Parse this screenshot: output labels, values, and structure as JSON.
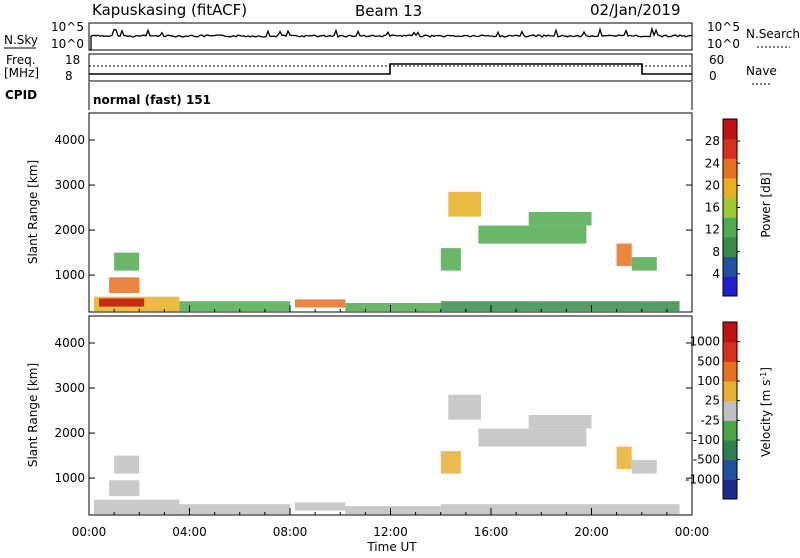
{
  "header": {
    "radar": "Kapuskasing (fitACF)",
    "beam": "Beam 13",
    "date": "02/Jan/2019"
  },
  "top_panels": {
    "nsky_label": "N.Sky",
    "nsky_ticks": [
      "10^5",
      "10^0"
    ],
    "nsearch_label": "N.Search",
    "nsearch_ticks": [
      "10^5",
      "10^0"
    ],
    "freq_label_1": "Freq.",
    "freq_label_2": "[MHz]",
    "freq_ticks": [
      "18",
      "8"
    ],
    "nave_label": "Nave",
    "nave_ticks": [
      "60",
      "0"
    ],
    "cpid_label": "CPID",
    "cpid_text": "normal (fast) 151"
  },
  "colors": {
    "power_scale": [
      "#2020d0",
      "#2050a0",
      "#3a8a4a",
      "#50aa50",
      "#a0c830",
      "#e8b020",
      "#e87020",
      "#d83020",
      "#c01010"
    ],
    "velocity_scale": [
      "#1f2a8c",
      "#2050a0",
      "#2f7f4f",
      "#48a848",
      "#c0c0c0",
      "#e8b030",
      "#e87020",
      "#d83020",
      "#c01010"
    ]
  },
  "chart_data": [
    {
      "type": "heatmap",
      "title": "",
      "xlabel": "Time UT",
      "ylabel": "Slant Range [km]",
      "x_ticks": [
        "00:00",
        "04:00",
        "08:00",
        "12:00",
        "16:00",
        "20:00",
        "00:00"
      ],
      "y_ticks": [
        "1000",
        "2000",
        "3000",
        "4000"
      ],
      "ylim": [
        180,
        4600
      ],
      "colorbar": {
        "label": "Power [dB]",
        "ticks": [
          "28",
          "24",
          "20",
          "16",
          "12",
          "8",
          "4"
        ],
        "range": [
          0,
          30
        ]
      },
      "regions": [
        {
          "t": [
            0.2,
            3.6
          ],
          "r": [
            200,
            520
          ],
          "value": 18
        },
        {
          "t": [
            0.4,
            2.2
          ],
          "r": [
            300,
            480
          ],
          "value": 27
        },
        {
          "t": [
            0.8,
            2.0
          ],
          "r": [
            600,
            950
          ],
          "value": 22
        },
        {
          "t": [
            1.0,
            2.0
          ],
          "r": [
            1100,
            1500
          ],
          "value": 10
        },
        {
          "t": [
            3.6,
            8.0
          ],
          "r": [
            200,
            420
          ],
          "value": 12
        },
        {
          "t": [
            8.2,
            10.2
          ],
          "r": [
            280,
            460
          ],
          "value": 22
        },
        {
          "t": [
            10.2,
            14.0
          ],
          "r": [
            200,
            380
          ],
          "value": 10
        },
        {
          "t": [
            14.0,
            14.8
          ],
          "r": [
            1100,
            1600
          ],
          "value": 13
        },
        {
          "t": [
            14.3,
            15.6
          ],
          "r": [
            2300,
            2850
          ],
          "value": 18
        },
        {
          "t": [
            15.5,
            19.8
          ],
          "r": [
            1700,
            2100
          ],
          "value": 13
        },
        {
          "t": [
            17.5,
            20.0
          ],
          "r": [
            2100,
            2400
          ],
          "value": 11
        },
        {
          "t": [
            21.0,
            21.6
          ],
          "r": [
            1200,
            1700
          ],
          "value": 22
        },
        {
          "t": [
            21.6,
            22.6
          ],
          "r": [
            1100,
            1400
          ],
          "value": 12
        },
        {
          "t": [
            14.0,
            23.5
          ],
          "r": [
            200,
            420
          ],
          "value": 9
        }
      ]
    },
    {
      "type": "heatmap",
      "title": "",
      "xlabel": "Time UT",
      "ylabel": "Slant Range [km]",
      "x_ticks": [
        "00:00",
        "04:00",
        "08:00",
        "12:00",
        "16:00",
        "20:00",
        "00:00"
      ],
      "y_ticks": [
        "1000",
        "2000",
        "3000",
        "4000"
      ],
      "ylim": [
        180,
        4600
      ],
      "colorbar": {
        "label": "Velocity [m s^-1]",
        "ticks": [
          "1000",
          "500",
          "100",
          "25",
          "-25",
          "-100",
          "-500",
          "-1000"
        ],
        "range": [
          -1200,
          1200
        ]
      },
      "regions": [
        {
          "t": [
            0.2,
            3.6
          ],
          "r": [
            200,
            520
          ],
          "value": 0
        },
        {
          "t": [
            0.8,
            2.0
          ],
          "r": [
            600,
            950
          ],
          "value": 0
        },
        {
          "t": [
            1.0,
            2.0
          ],
          "r": [
            1100,
            1500
          ],
          "value": 0
        },
        {
          "t": [
            3.6,
            8.0
          ],
          "r": [
            200,
            420
          ],
          "value": 80
        },
        {
          "t": [
            8.2,
            10.2
          ],
          "r": [
            280,
            460
          ],
          "value": -80
        },
        {
          "t": [
            10.2,
            14.0
          ],
          "r": [
            200,
            380
          ],
          "value": -80
        },
        {
          "t": [
            14.0,
            14.8
          ],
          "r": [
            1100,
            1600
          ],
          "value": 150
        },
        {
          "t": [
            14.3,
            15.6
          ],
          "r": [
            2300,
            2850
          ],
          "value": 0
        },
        {
          "t": [
            15.5,
            19.8
          ],
          "r": [
            1700,
            2100
          ],
          "value": 0
        },
        {
          "t": [
            17.5,
            20.0
          ],
          "r": [
            2100,
            2400
          ],
          "value": 0
        },
        {
          "t": [
            21.0,
            21.6
          ],
          "r": [
            1200,
            1700
          ],
          "value": 150
        },
        {
          "t": [
            21.6,
            22.6
          ],
          "r": [
            1100,
            1400
          ],
          "value": 0
        },
        {
          "t": [
            14.0,
            23.5
          ],
          "r": [
            200,
            420
          ],
          "value": -80
        }
      ]
    }
  ]
}
